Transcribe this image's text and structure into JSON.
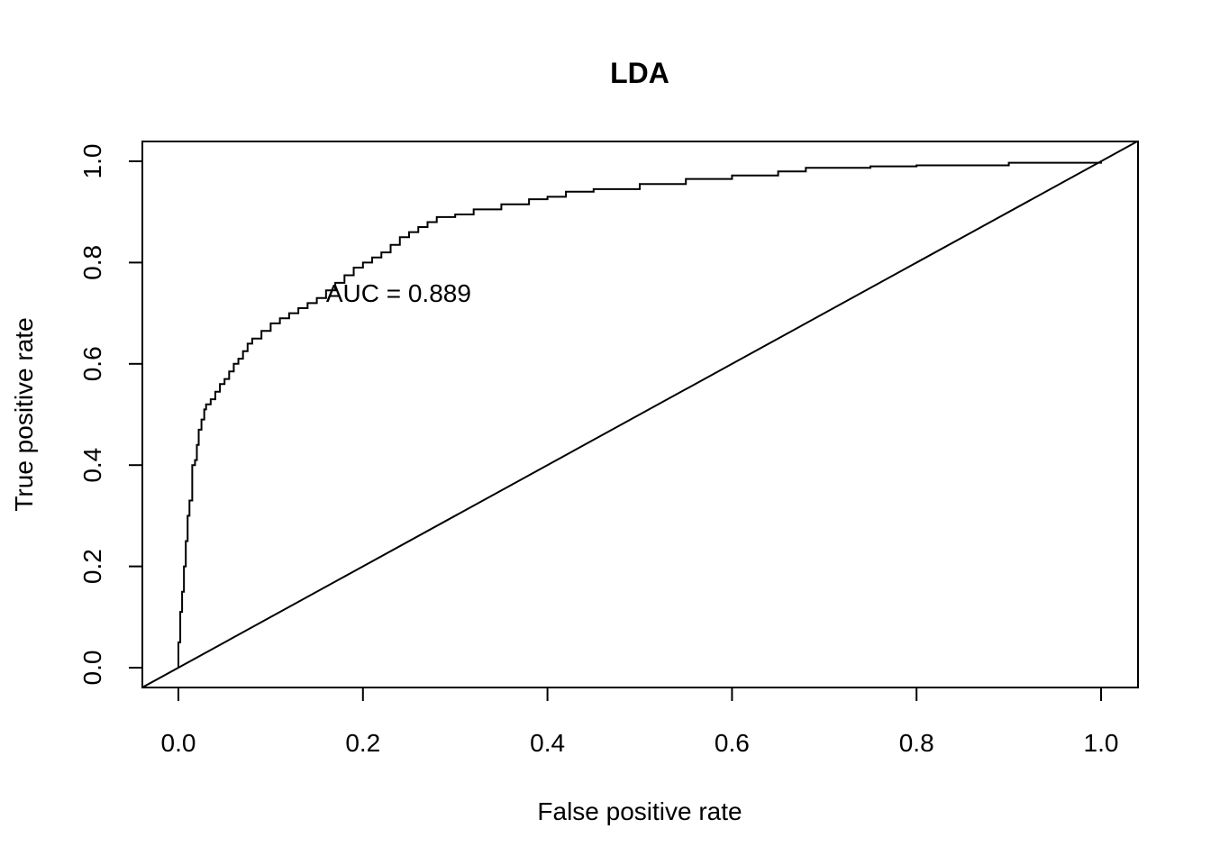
{
  "chart_data": {
    "type": "line",
    "title": "LDA",
    "xlabel": "False positive rate",
    "ylabel": "True positive rate",
    "xlim": [
      0,
      1
    ],
    "ylim": [
      0,
      1
    ],
    "xticks": [
      "0.0",
      "0.2",
      "0.4",
      "0.6",
      "0.8",
      "1.0"
    ],
    "yticks": [
      "0.0",
      "0.2",
      "0.4",
      "0.6",
      "0.8",
      "1.0"
    ],
    "grid": false,
    "annotation": {
      "text": "AUC = 0.889",
      "x": 0.16,
      "y": 0.74
    },
    "series": [
      {
        "x": [
          0.0,
          0.0,
          0.002,
          0.004,
          0.006,
          0.008,
          0.01,
          0.012,
          0.015,
          0.018,
          0.02,
          0.022,
          0.025,
          0.028,
          0.03,
          0.035,
          0.04,
          0.045,
          0.05,
          0.055,
          0.06,
          0.065,
          0.07,
          0.075,
          0.08,
          0.09,
          0.1,
          0.11,
          0.12,
          0.13,
          0.14,
          0.15,
          0.16,
          0.17,
          0.18,
          0.19,
          0.2,
          0.21,
          0.22,
          0.23,
          0.24,
          0.25,
          0.26,
          0.27,
          0.28,
          0.3,
          0.32,
          0.35,
          0.38,
          0.4,
          0.42,
          0.45,
          0.5,
          0.55,
          0.6,
          0.65,
          0.68,
          0.75,
          0.8,
          0.9,
          1.0
        ],
        "y": [
          0.0,
          0.05,
          0.11,
          0.15,
          0.2,
          0.25,
          0.3,
          0.33,
          0.4,
          0.41,
          0.44,
          0.47,
          0.49,
          0.51,
          0.52,
          0.53,
          0.545,
          0.56,
          0.57,
          0.585,
          0.6,
          0.61,
          0.625,
          0.64,
          0.65,
          0.665,
          0.68,
          0.69,
          0.7,
          0.71,
          0.72,
          0.73,
          0.745,
          0.76,
          0.775,
          0.79,
          0.8,
          0.81,
          0.82,
          0.835,
          0.85,
          0.86,
          0.87,
          0.88,
          0.89,
          0.895,
          0.905,
          0.915,
          0.925,
          0.93,
          0.94,
          0.945,
          0.955,
          0.965,
          0.972,
          0.98,
          0.987,
          0.99,
          0.992,
          0.997,
          1.0
        ]
      }
    ],
    "reference_line": {
      "x": [
        0,
        1
      ],
      "y": [
        0,
        1
      ]
    }
  }
}
